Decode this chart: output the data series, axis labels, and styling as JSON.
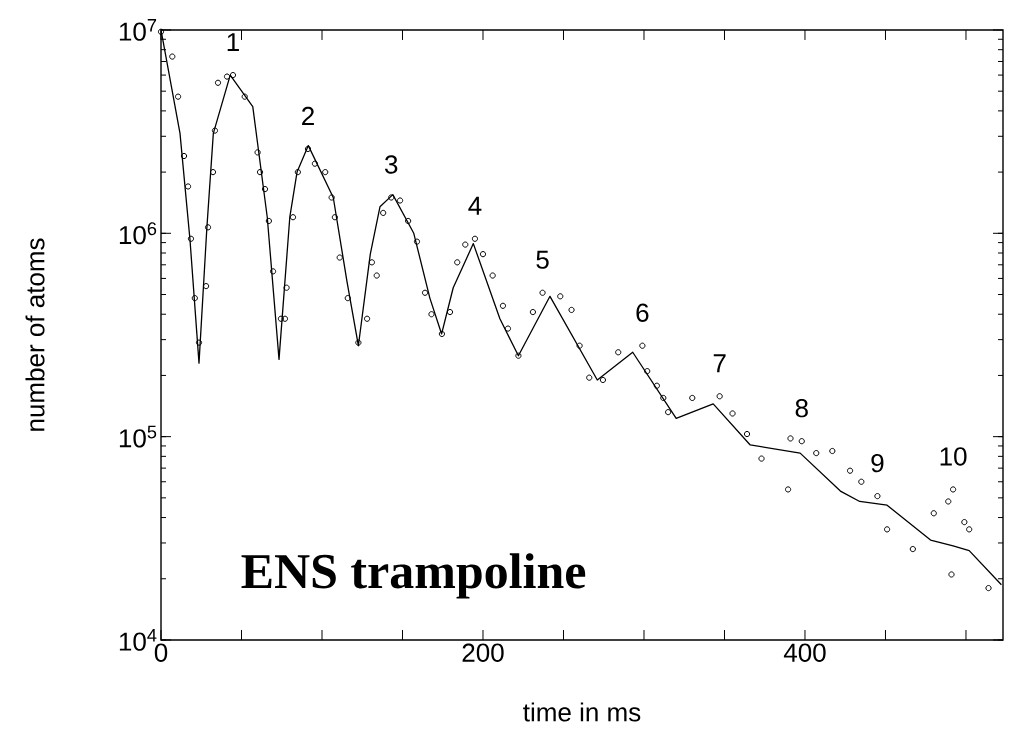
{
  "chart_data": {
    "type": "line",
    "xlabel": "time in ms",
    "ylabel": "number of atoms",
    "log": "y",
    "xlim": [
      0,
      523
    ],
    "ylim": [
      10000,
      10000000
    ],
    "xticks": [
      0,
      {
        "value": 50,
        "label": null
      },
      {
        "value": 100,
        "label": null
      },
      {
        "value": 150,
        "label": null
      },
      200,
      {
        "value": 250,
        "label": null
      },
      {
        "value": 300,
        "label": null
      },
      {
        "value": 350,
        "label": null
      },
      400,
      {
        "value": 450,
        "label": null
      },
      {
        "value": 500,
        "label": null
      }
    ],
    "yticks": [
      {
        "value": 10000,
        "label": "10$^{4}$"
      },
      {
        "value": 100000,
        "label": "10$^{5}$"
      },
      {
        "value": 1000000,
        "label": "10$^{6}$"
      },
      {
        "value": 10000000,
        "label": "10$^{7}$"
      }
    ],
    "series": [
      {
        "type": "scatter",
        "color": "#000000",
        "marker": "circle",
        "x": [
          0,
          7,
          10.6,
          14.3,
          16.8,
          18.6,
          21,
          23.6,
          28,
          29.2,
          32.3,
          33.5,
          35.4,
          41,
          44.7,
          52,
          60,
          61.5,
          64.6,
          67,
          69.6,
          74.5,
          77,
          78,
          82,
          85,
          91.3,
          95.6,
          102,
          106,
          108,
          111,
          116,
          122.6,
          128,
          131,
          134,
          138,
          143,
          148.5,
          153.5,
          159,
          164,
          168,
          174.5,
          179.5,
          184,
          189,
          195,
          200,
          206,
          212.4,
          215.5,
          222,
          231,
          237,
          248,
          255,
          260,
          266,
          274.5,
          284,
          299,
          302,
          308,
          312,
          315,
          330,
          347,
          355,
          364,
          373,
          389.5,
          391,
          398,
          407,
          417,
          428,
          435,
          445,
          451,
          467,
          480,
          489,
          491,
          492,
          499,
          502,
          514
        ],
        "values": [
          9800000,
          7400000,
          4700000,
          2400000,
          1700000,
          940000,
          480000,
          290000,
          550000,
          1070000,
          2000000,
          3200000,
          5500000,
          5900000,
          6000000,
          4700000,
          2500000,
          2000000,
          1650000,
          1150000,
          650000,
          380000,
          380000,
          540000,
          1200000,
          2000000,
          2600000,
          2200000,
          2000000,
          1500000,
          1200000,
          760000,
          480000,
          290000,
          380000,
          720000,
          620000,
          1260000,
          1500000,
          1450000,
          1150000,
          910000,
          510000,
          400000,
          320000,
          410000,
          720000,
          880000,
          940000,
          790000,
          620000,
          440000,
          340000,
          250000,
          410000,
          510000,
          490000,
          420000,
          280000,
          195000,
          190000,
          260000,
          280000,
          210000,
          178000,
          155000,
          132000,
          155000,
          158000,
          130000,
          103000,
          78000,
          55000,
          98000,
          95000,
          83000,
          85000,
          68000,
          60000,
          51000,
          35000,
          28000,
          42000,
          48000,
          21000,
          55000,
          38000,
          35000,
          18000
        ]
      },
      {
        "color": "#000000",
        "line_style": "solid",
        "x": [
          0,
          11.8,
          18,
          23.6,
          28.5,
          32.5,
          43,
          57,
          66,
          73.3,
          80,
          84.5,
          91.5,
          107,
          115.5,
          122.6,
          130,
          136,
          144,
          157,
          167,
          174.3,
          181.5,
          194,
          210.5,
          222,
          241.6,
          271,
          293,
          320,
          343,
          366,
          397,
          422,
          434,
          451,
          478,
          492,
          502,
          522
        ],
        "values": [
          10000000,
          3100000,
          930000,
          230000,
          1070000,
          3100000,
          6000000,
          4200000,
          1200000,
          240000,
          1200000,
          2000000,
          2700000,
          1500000,
          580000,
          280000,
          790000,
          1350000,
          1550000,
          1000000,
          480000,
          320000,
          540000,
          890000,
          380000,
          250000,
          490000,
          190000,
          260000,
          123000,
          145000,
          91000,
          83000,
          54000,
          48000,
          46000,
          31000,
          29000,
          27500,
          18700
        ]
      }
    ],
    "annotations": [
      {
        "text": "1",
        "x": 44.7,
        "y": 6000000
      },
      {
        "text": "2",
        "x": 91.3,
        "y": 2600000
      },
      {
        "text": "3",
        "x": 143,
        "y": 1500000
      },
      {
        "text": "4",
        "x": 195,
        "y": 940000
      },
      {
        "text": "5",
        "x": 237,
        "y": 510000
      },
      {
        "text": "6",
        "x": 299,
        "y": 280000
      },
      {
        "text": "7",
        "x": 347,
        "y": 158000
      },
      {
        "text": "8",
        "x": 398,
        "y": 95000
      },
      {
        "text": "9",
        "x": 445,
        "y": 51000
      },
      {
        "text": "10",
        "x": 492,
        "y": 55000
      },
      "**ENS trampoline**"
    ]
  }
}
